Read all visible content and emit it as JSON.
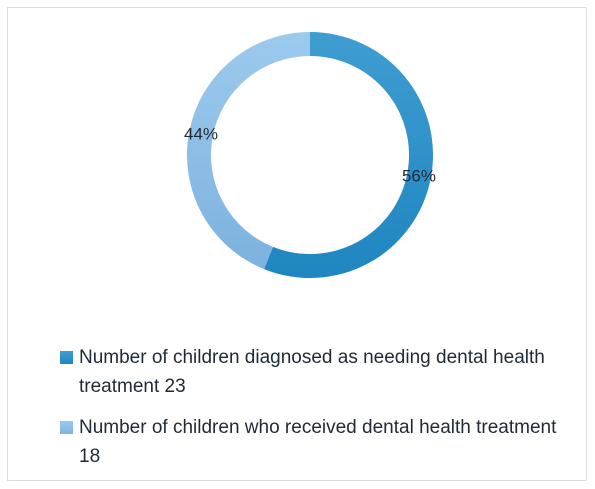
{
  "chart_data": {
    "type": "pie",
    "donut": true,
    "legend_position": "bottom",
    "series": [
      {
        "name": "Number of children diagnosed as needing dental health treatment  23",
        "value": 23,
        "percent_label": "56%",
        "color": "#1f86c1",
        "color_light": "#3f9dd1"
      },
      {
        "name": "Number of children who received dental health treatment  18",
        "value": 18,
        "percent_label": "44%",
        "color": "#7db2df",
        "color_light": "#9ccaed"
      }
    ]
  }
}
